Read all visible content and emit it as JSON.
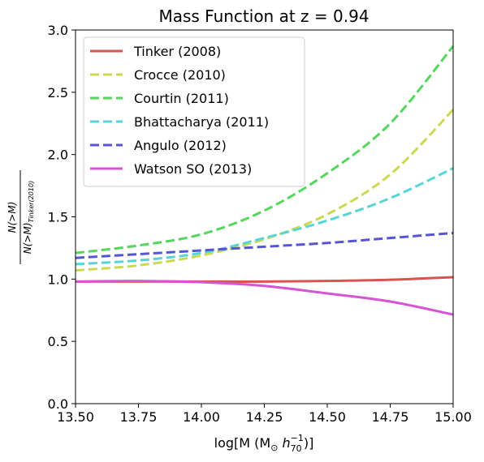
{
  "chart_data": {
    "type": "line",
    "title": "Mass Function at z = 0.94",
    "xlabel_parts": {
      "pre": "log[M (M",
      "sun": "⊙",
      "mid": " h",
      "sub": "70",
      "sup": "−1",
      "post": ")]"
    },
    "ylabel_parts": {
      "num": "N(>M)",
      "den": "N(>M)",
      "den_sub": "Tinker(2010)"
    },
    "xlim": [
      13.5,
      15.0
    ],
    "ylim": [
      0.0,
      3.0
    ],
    "xticks": [
      "13.50",
      "13.75",
      "14.00",
      "14.25",
      "14.50",
      "14.75",
      "15.00"
    ],
    "yticks": [
      "0.0",
      "0.5",
      "1.0",
      "1.5",
      "2.0",
      "2.5",
      "3.0"
    ],
    "grid": false,
    "legend_position": "upper-left",
    "x": [
      13.5,
      13.75,
      14.0,
      14.25,
      14.5,
      14.75,
      15.0
    ],
    "series": [
      {
        "name": "Tinker (2008)",
        "color": "#d9534f",
        "dash": "solid",
        "values": [
          0.98,
          0.98,
          0.98,
          0.98,
          0.985,
          0.995,
          1.015
        ]
      },
      {
        "name": "Crocce (2010)",
        "color": "#ccd94f",
        "dash": "dashed",
        "values": [
          1.07,
          1.11,
          1.19,
          1.32,
          1.52,
          1.84,
          2.36
        ]
      },
      {
        "name": "Courtin (2011)",
        "color": "#55d65c",
        "dash": "dashed",
        "values": [
          1.21,
          1.27,
          1.36,
          1.55,
          1.85,
          2.25,
          2.87
        ]
      },
      {
        "name": "Bhattacharya (2011)",
        "color": "#55d6d6",
        "dash": "dashed",
        "values": [
          1.12,
          1.15,
          1.21,
          1.33,
          1.47,
          1.65,
          1.89
        ]
      },
      {
        "name": "Angulo (2012)",
        "color": "#5555d6",
        "dash": "dashed",
        "values": [
          1.17,
          1.2,
          1.23,
          1.26,
          1.29,
          1.33,
          1.37
        ]
      },
      {
        "name": "Watson SO (2013)",
        "color": "#d655d6",
        "dash": "solid",
        "values": [
          0.98,
          0.985,
          0.975,
          0.945,
          0.885,
          0.82,
          0.715
        ]
      }
    ]
  }
}
